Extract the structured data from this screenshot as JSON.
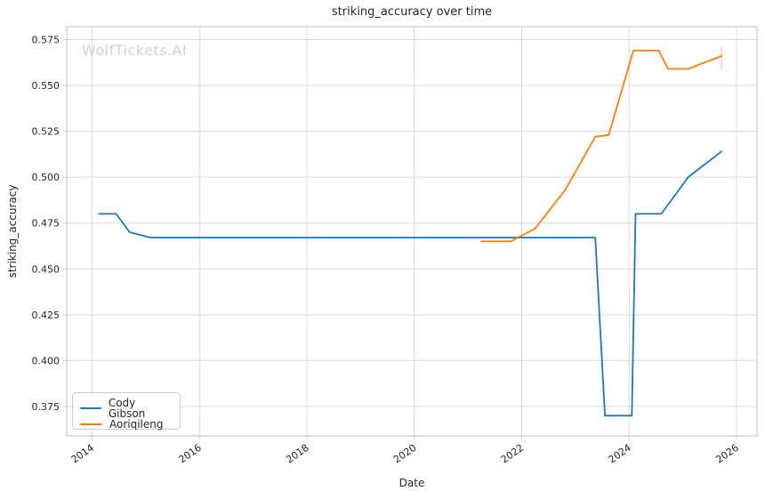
{
  "figure": {
    "watermark": "WolfTickets.AI"
  },
  "chart_data": {
    "type": "line",
    "title": "striking_accuracy over time",
    "xlabel": "Date",
    "ylabel": "striking_accuracy",
    "grid": true,
    "legend_position": "lower left",
    "xlim": [
      2013.53,
      2026.38
    ],
    "ylim": [
      0.359,
      0.582
    ],
    "x_ticks": [
      {
        "value": 2014,
        "label": "2014"
      },
      {
        "value": 2016,
        "label": "2016"
      },
      {
        "value": 2018,
        "label": "2018"
      },
      {
        "value": 2020,
        "label": "2020"
      },
      {
        "value": 2022,
        "label": "2022"
      },
      {
        "value": 2024,
        "label": "2024"
      },
      {
        "value": 2026,
        "label": "2026"
      }
    ],
    "y_ticks": [
      {
        "value": 0.375,
        "label": "0.375"
      },
      {
        "value": 0.4,
        "label": "0.400"
      },
      {
        "value": 0.425,
        "label": "0.425"
      },
      {
        "value": 0.45,
        "label": "0.450"
      },
      {
        "value": 0.475,
        "label": "0.475"
      },
      {
        "value": 0.5,
        "label": "0.500"
      },
      {
        "value": 0.525,
        "label": "0.525"
      },
      {
        "value": 0.55,
        "label": "0.550"
      },
      {
        "value": 0.575,
        "label": "0.575"
      }
    ],
    "series": [
      {
        "name": "Cody Gibson",
        "color": "#1f77b4",
        "points": [
          [
            2014.13,
            0.48
          ],
          [
            2014.45,
            0.48
          ],
          [
            2014.7,
            0.47
          ],
          [
            2015.1,
            0.467
          ],
          [
            2023.37,
            0.467
          ],
          [
            2023.55,
            0.37
          ],
          [
            2024.05,
            0.37
          ],
          [
            2024.12,
            0.48
          ],
          [
            2024.6,
            0.48
          ],
          [
            2025.1,
            0.5
          ],
          [
            2025.72,
            0.514
          ]
        ]
      },
      {
        "name": "Aoriqileng",
        "color": "#ff7f0e",
        "points": [
          [
            2021.25,
            0.465
          ],
          [
            2021.8,
            0.465
          ],
          [
            2022.25,
            0.472
          ],
          [
            2022.81,
            0.493
          ],
          [
            2023.37,
            0.522
          ],
          [
            2023.62,
            0.523
          ],
          [
            2024.08,
            0.569
          ],
          [
            2024.55,
            0.569
          ],
          [
            2024.72,
            0.559
          ],
          [
            2025.1,
            0.559
          ],
          [
            2025.72,
            0.566
          ]
        ],
        "end_marker": {
          "x": 2025.72,
          "y1": 0.559,
          "y2": 0.571,
          "color": "rgba(255,127,14,0.35)"
        }
      }
    ],
    "style": {
      "grid_color": "#d9d9d9",
      "axis_color": "#c9c9c9",
      "tick_color": "#c9c9c9",
      "text_color": "#262626"
    }
  }
}
